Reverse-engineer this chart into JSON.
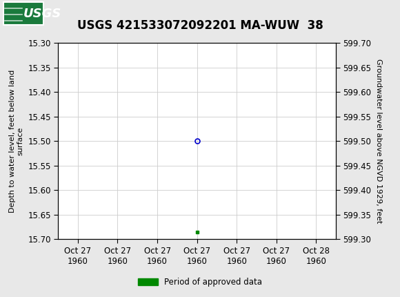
{
  "title": "USGS 421533072092201 MA-WUW  38",
  "title_fontsize": 12,
  "header_color": "#1a7a3c",
  "bg_color": "#e8e8e8",
  "plot_bg_color": "#ffffff",
  "grid_color": "#cccccc",
  "left_ylabel": "Depth to water level, feet below land\nsurface",
  "right_ylabel": "Groundwater level above NGVD 1929, feet",
  "left_ylim": [
    15.3,
    15.7
  ],
  "right_ylim": [
    599.3,
    599.7
  ],
  "left_yticks": [
    15.3,
    15.35,
    15.4,
    15.45,
    15.5,
    15.55,
    15.6,
    15.65,
    15.7
  ],
  "right_yticks": [
    599.7,
    599.65,
    599.6,
    599.55,
    599.5,
    599.45,
    599.4,
    599.35,
    599.3
  ],
  "xtick_labels": [
    "Oct 27\n1960",
    "Oct 27\n1960",
    "Oct 27\n1960",
    "Oct 27\n1960",
    "Oct 27\n1960",
    "Oct 27\n1960",
    "Oct 28\n1960"
  ],
  "xtick_positions": [
    0,
    1,
    2,
    3,
    4,
    5,
    6
  ],
  "data_x": [
    3.0
  ],
  "data_y": [
    15.5
  ],
  "point_color": "#0000cc",
  "green_marker_x": [
    3.0
  ],
  "green_marker_y": [
    15.685
  ],
  "green_color": "#008800",
  "legend_label": "Period of approved data",
  "legend_color": "#008800",
  "tick_fontsize": 8.5,
  "ylabel_fontsize": 8.0
}
